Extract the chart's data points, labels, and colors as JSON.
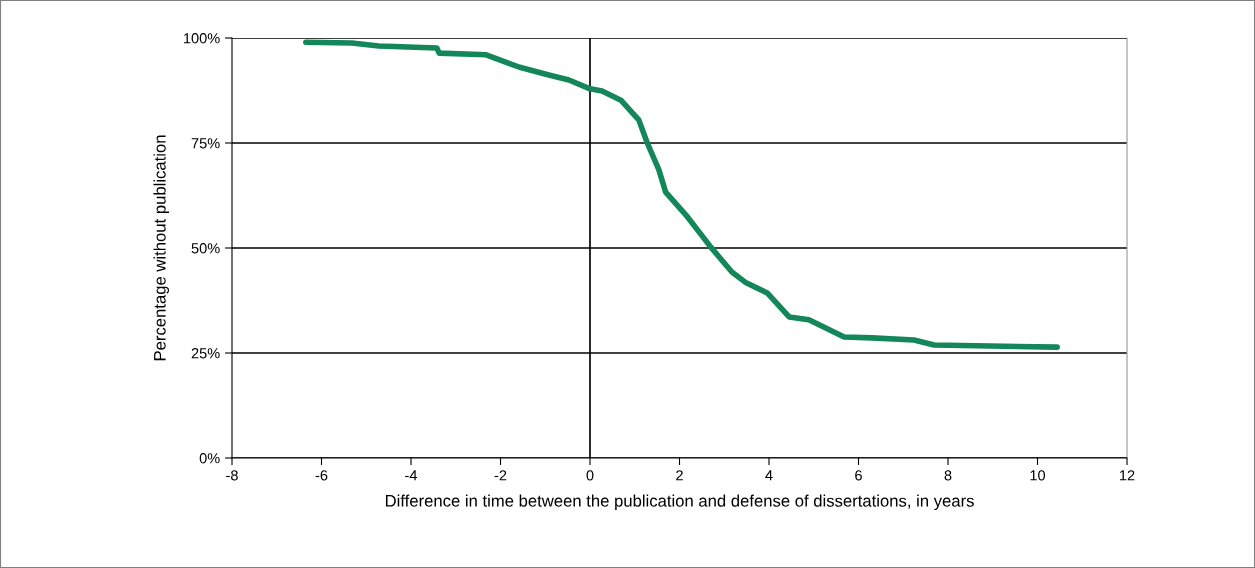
{
  "chart_data": {
    "type": "line",
    "xlabel": "Difference in time between the publication and defense of dissertations, in years",
    "ylabel": "Percentage without publication",
    "x": [
      -6.35,
      -5.32,
      -4.72,
      -3.42,
      -3.37,
      -2.32,
      -1.59,
      -0.92,
      -0.47,
      0,
      0.27,
      0.69,
      1.09,
      1.28,
      1.54,
      1.69,
      2.14,
      2.7,
      3.17,
      3.49,
      3.96,
      4.45,
      4.89,
      5.68,
      6.3,
      7.24,
      7.69,
      10.44
    ],
    "series": [
      {
        "color": "#13875a",
        "values": [
          99.0,
          98.8,
          98.1,
          97.6,
          96.4,
          96.0,
          93.1,
          91.2,
          90.0,
          87.9,
          87.4,
          85.2,
          80.5,
          75.0,
          68.6,
          63.3,
          57.9,
          50.2,
          44.3,
          41.7,
          39.3,
          33.6,
          32.9,
          28.8,
          28.6,
          28.1,
          26.9,
          26.4
        ]
      }
    ],
    "xlim": [
      -8,
      12
    ],
    "xticks": [
      -8,
      -6,
      -4,
      -2,
      0,
      2,
      4,
      6,
      8,
      10,
      12
    ],
    "ylim": [
      0,
      100
    ],
    "yticks": [
      {
        "value": 0,
        "label": "0%"
      },
      {
        "value": 25,
        "label": "25%"
      },
      {
        "value": 50,
        "label": "50%"
      },
      {
        "value": 75,
        "label": "75%"
      },
      {
        "value": 100,
        "label": "100%"
      }
    ],
    "ref_lines": [
      {
        "axis": "x",
        "value": 0,
        "color": "#000000"
      }
    ],
    "grid": "y",
    "marker": "none",
    "line_style": "solid"
  }
}
